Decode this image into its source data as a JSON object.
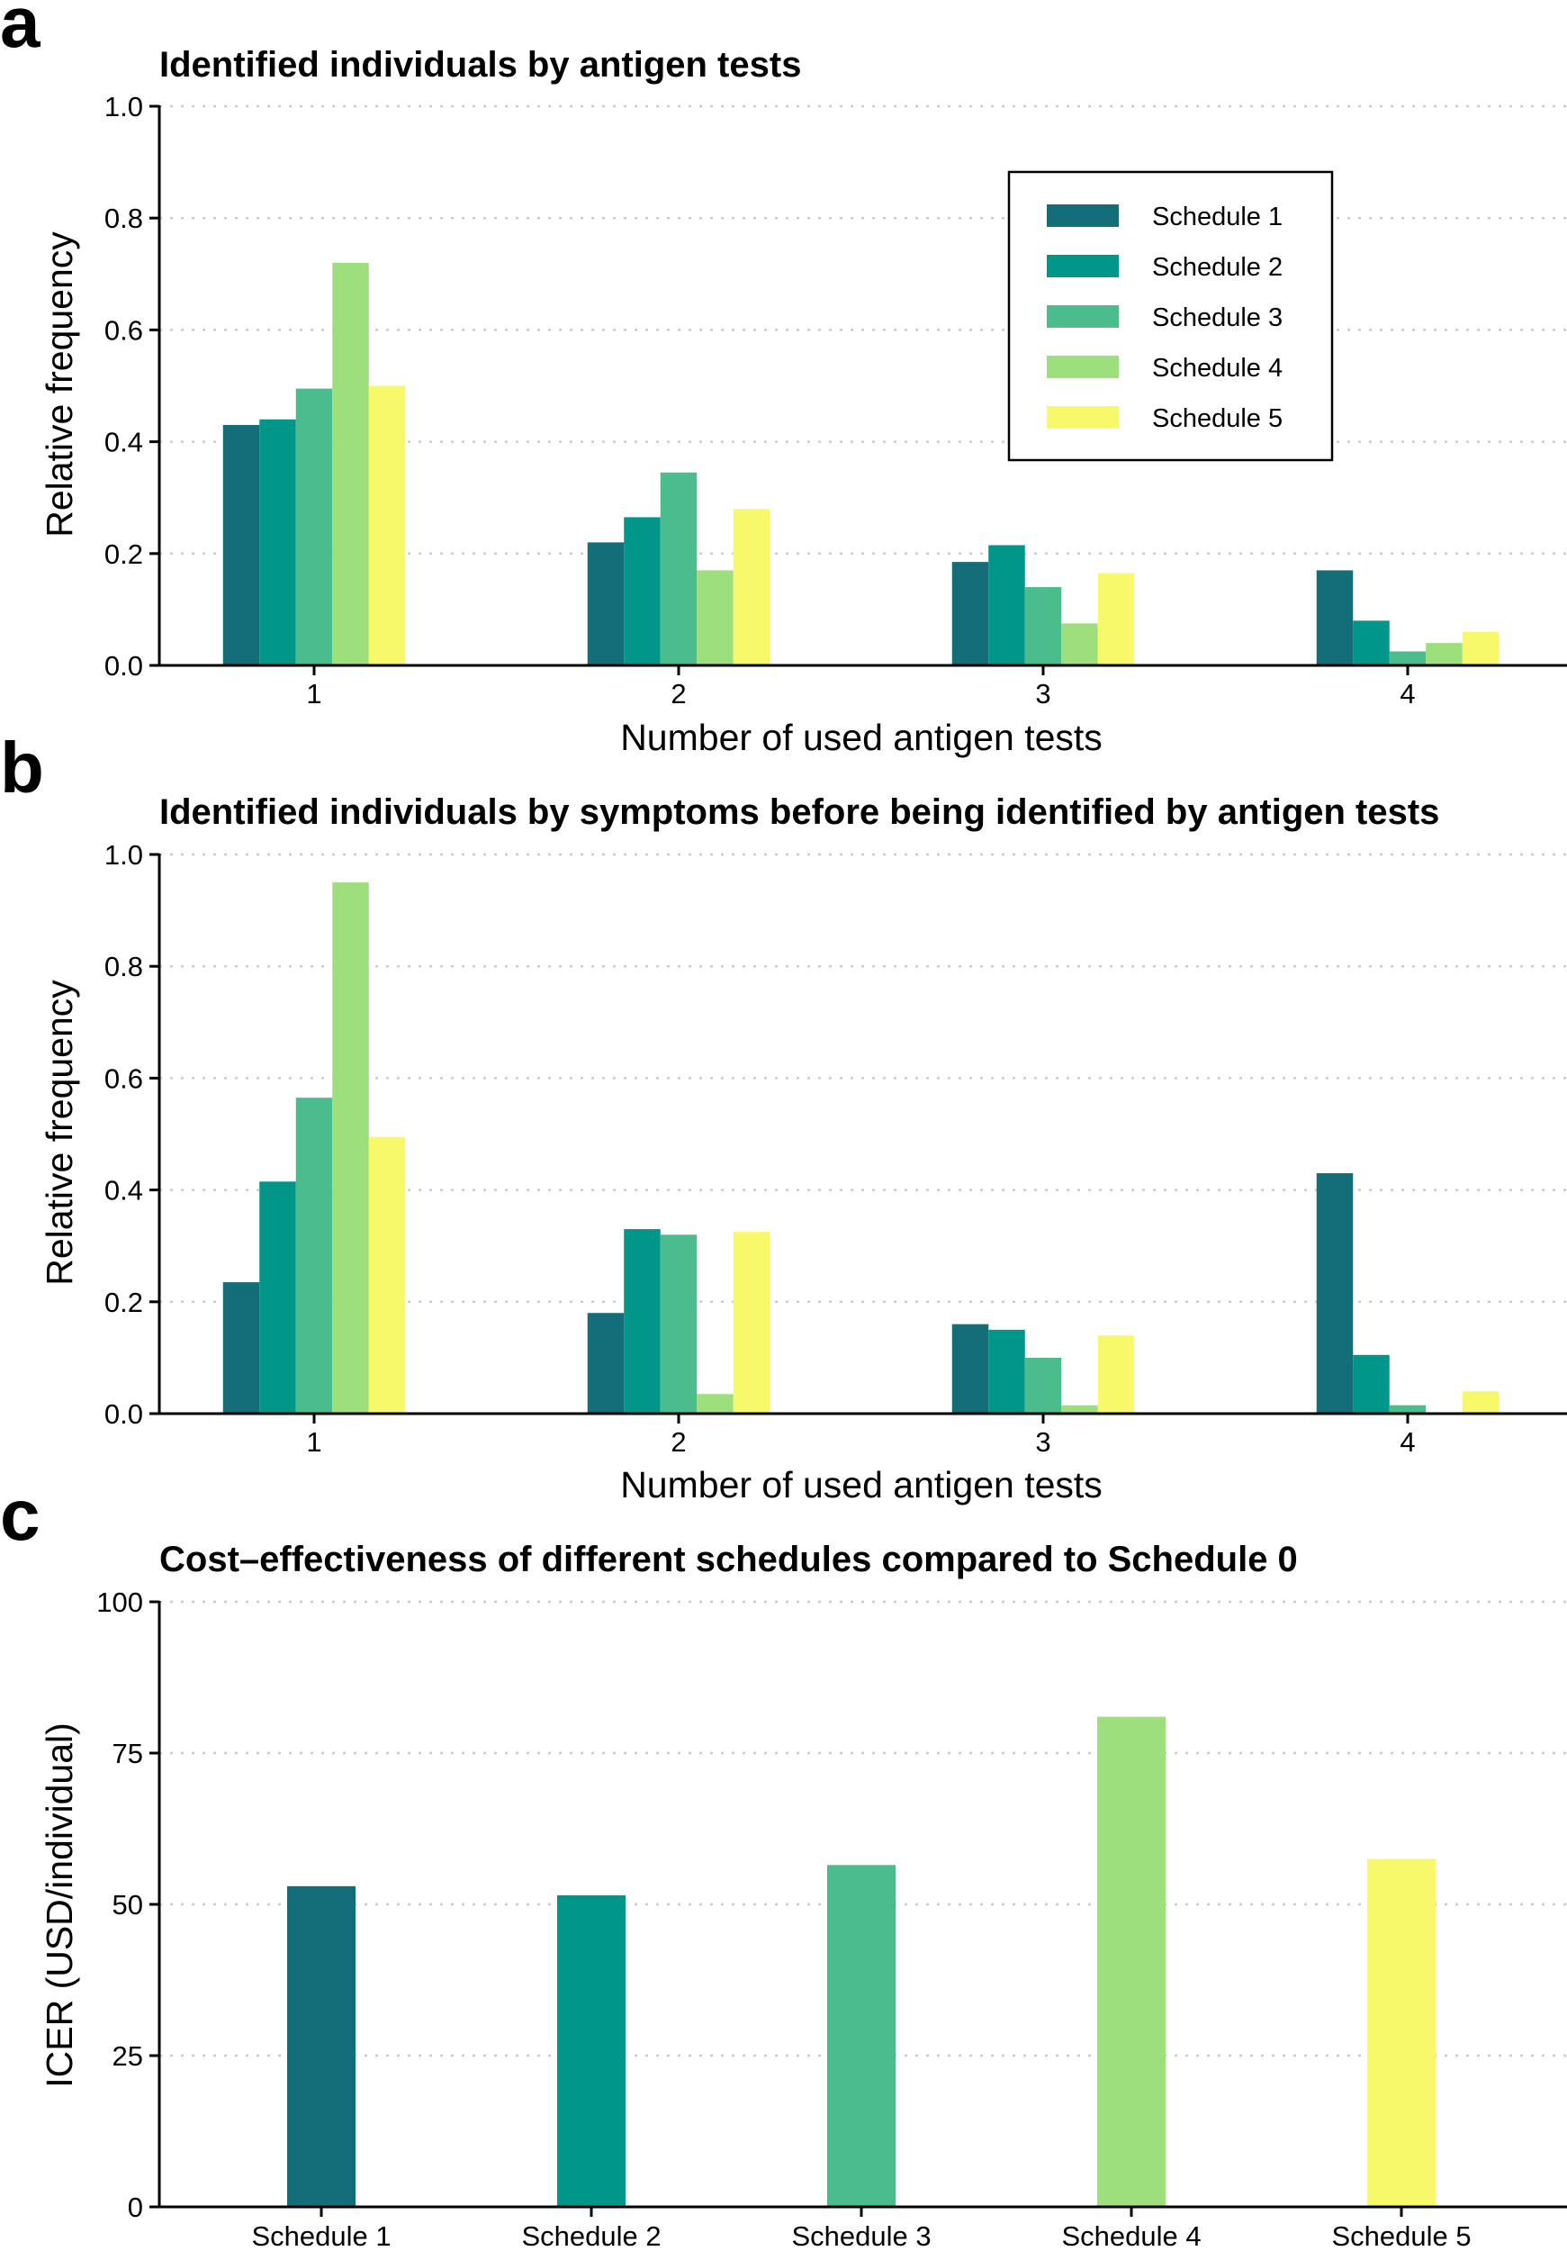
{
  "colors": [
    "#136e7a",
    "#00968a",
    "#4bbd8c",
    "#9ddf7c",
    "#f8f96a"
  ],
  "legend": [
    "Schedule 1",
    "Schedule 2",
    "Schedule 3",
    "Schedule 4",
    "Schedule 5"
  ],
  "chart_data": [
    {
      "panel": "a",
      "type": "bar",
      "title": "Identified individuals by antigen tests",
      "xlabel": "Number of used antigen tests",
      "ylabel": "Relative frequency",
      "categories": [
        "1",
        "2",
        "3",
        "4"
      ],
      "ylim": [
        0,
        1.0
      ],
      "yticks": [
        "0.0",
        "0.2",
        "0.4",
        "0.6",
        "0.8",
        "1.0"
      ],
      "legend_position": "top-right",
      "grid": "horizontal dotted",
      "series": [
        {
          "name": "Schedule 1",
          "values": [
            0.43,
            0.22,
            0.185,
            0.17
          ]
        },
        {
          "name": "Schedule 2",
          "values": [
            0.44,
            0.265,
            0.215,
            0.08
          ]
        },
        {
          "name": "Schedule 3",
          "values": [
            0.495,
            0.345,
            0.14,
            0.025
          ]
        },
        {
          "name": "Schedule 4",
          "values": [
            0.72,
            0.17,
            0.075,
            0.04
          ]
        },
        {
          "name": "Schedule 5",
          "values": [
            0.5,
            0.28,
            0.165,
            0.06
          ]
        }
      ]
    },
    {
      "panel": "b",
      "type": "bar",
      "title": "Identified individuals by symptoms before being identified by antigen tests",
      "xlabel": "Number of used antigen tests",
      "ylabel": "Relative frequency",
      "categories": [
        "1",
        "2",
        "3",
        "4"
      ],
      "ylim": [
        0,
        1.0
      ],
      "yticks": [
        "0.0",
        "0.2",
        "0.4",
        "0.6",
        "0.8",
        "1.0"
      ],
      "grid": "horizontal dotted",
      "series": [
        {
          "name": "Schedule 1",
          "values": [
            0.235,
            0.18,
            0.16,
            0.43
          ]
        },
        {
          "name": "Schedule 2",
          "values": [
            0.415,
            0.33,
            0.15,
            0.105
          ]
        },
        {
          "name": "Schedule 3",
          "values": [
            0.565,
            0.32,
            0.1,
            0.015
          ]
        },
        {
          "name": "Schedule 4",
          "values": [
            0.95,
            0.035,
            0.015,
            0.0
          ]
        },
        {
          "name": "Schedule 5",
          "values": [
            0.495,
            0.325,
            0.14,
            0.04
          ]
        }
      ]
    },
    {
      "panel": "c",
      "type": "bar",
      "title": "Cost–effectiveness of different schedules compared to Schedule 0",
      "xlabel": "",
      "ylabel": "ICER (USD/individual)",
      "categories": [
        "Schedule 1",
        "Schedule 2",
        "Schedule 3",
        "Schedule 4",
        "Schedule 5"
      ],
      "values": [
        53,
        51.5,
        56.5,
        81,
        57.5
      ],
      "ylim": [
        0,
        100
      ],
      "yticks": [
        "0",
        "25",
        "50",
        "75",
        "100"
      ],
      "grid": "horizontal dotted"
    }
  ]
}
